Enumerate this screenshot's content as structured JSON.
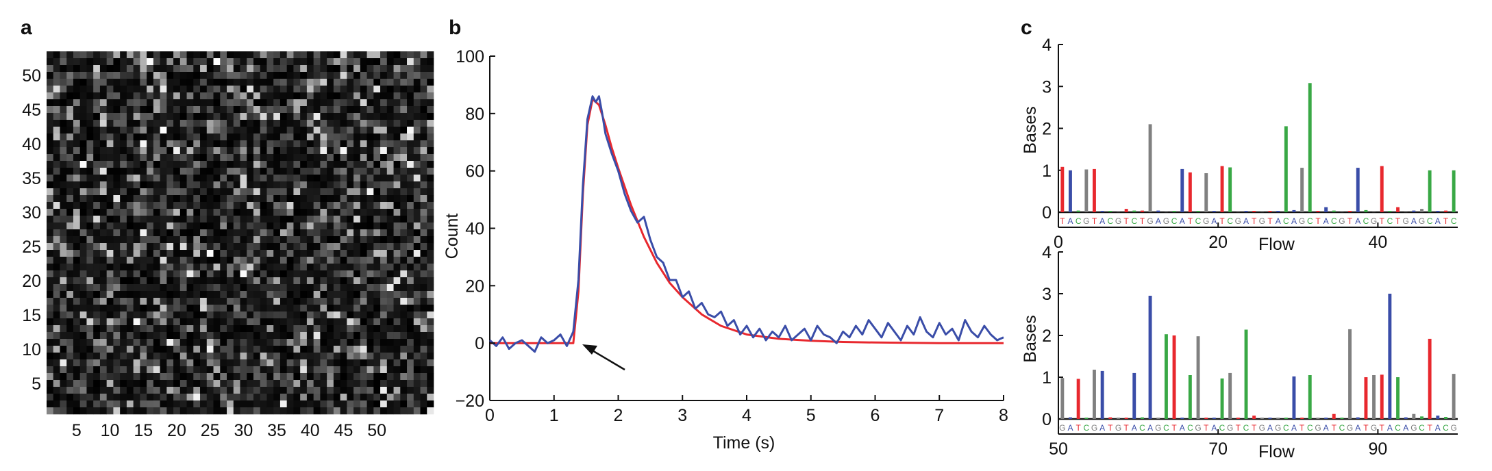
{
  "panels": {
    "a": "a",
    "b": "b",
    "c": "c"
  },
  "chart_data": [
    {
      "panel": "a",
      "type": "heatmap",
      "x_ticks": [
        5,
        10,
        15,
        20,
        25,
        30,
        35,
        40,
        45,
        50
      ],
      "y_ticks": [
        5,
        10,
        15,
        20,
        25,
        30,
        35,
        40,
        45,
        50
      ],
      "grid_size": [
        58,
        53
      ],
      "colormap": "gray",
      "values_note": ""
    },
    {
      "panel": "b",
      "type": "line",
      "xlabel": "Time (s)",
      "ylabel": "Count",
      "xlim": [
        0,
        8
      ],
      "ylim": [
        -20,
        100
      ],
      "x_ticks": [
        0,
        1,
        2,
        3,
        4,
        5,
        6,
        7,
        8
      ],
      "y_ticks": [
        -20,
        0,
        20,
        40,
        60,
        80,
        100
      ],
      "annotation": "arrow pointing to signal onset near t = 1.35 s",
      "series": [
        {
          "color": "#e8282e",
          "x": [
            0,
            0.5,
            1.0,
            1.3,
            1.38,
            1.45,
            1.52,
            1.6,
            1.7,
            1.8,
            1.9,
            2.0,
            2.2,
            2.4,
            2.6,
            2.8,
            3.0,
            3.3,
            3.6,
            4.0,
            4.5,
            5.0,
            5.5,
            6.0,
            7.0,
            8.0
          ],
          "y": [
            0,
            0,
            0,
            0,
            18,
            52,
            76,
            85,
            83,
            76,
            68,
            61,
            48,
            37,
            28,
            21,
            16,
            10,
            6,
            3,
            1.5,
            0.8,
            0.4,
            0.2,
            0,
            0
          ]
        },
        {
          "color": "#3a4da8",
          "x": [
            0,
            0.1,
            0.2,
            0.3,
            0.4,
            0.5,
            0.6,
            0.7,
            0.8,
            0.9,
            1.0,
            1.1,
            1.2,
            1.3,
            1.38,
            1.45,
            1.52,
            1.6,
            1.65,
            1.7,
            1.75,
            1.8,
            1.9,
            2.0,
            2.1,
            2.2,
            2.3,
            2.4,
            2.5,
            2.6,
            2.7,
            2.8,
            2.9,
            3.0,
            3.1,
            3.2,
            3.3,
            3.4,
            3.5,
            3.6,
            3.7,
            3.8,
            3.9,
            4.0,
            4.1,
            4.2,
            4.3,
            4.4,
            4.5,
            4.6,
            4.7,
            4.8,
            4.9,
            5.0,
            5.1,
            5.2,
            5.3,
            5.4,
            5.5,
            5.6,
            5.7,
            5.8,
            5.9,
            6.0,
            6.1,
            6.2,
            6.3,
            6.4,
            6.5,
            6.6,
            6.7,
            6.8,
            6.9,
            7.0,
            7.1,
            7.2,
            7.3,
            7.4,
            7.5,
            7.6,
            7.7,
            7.8,
            7.9,
            8.0
          ],
          "y": [
            1,
            -1,
            2,
            -2,
            0,
            1,
            -1,
            -3,
            2,
            0,
            1,
            3,
            -1,
            4,
            22,
            55,
            78,
            86,
            84,
            86,
            80,
            73,
            66,
            60,
            52,
            46,
            42,
            44,
            36,
            30,
            28,
            22,
            22,
            16,
            18,
            12,
            14,
            10,
            9,
            11,
            6,
            8,
            3,
            6,
            2,
            5,
            1,
            4,
            2,
            6,
            1,
            3,
            5,
            1,
            6,
            3,
            2,
            0,
            4,
            2,
            6,
            3,
            8,
            5,
            2,
            7,
            4,
            1,
            6,
            3,
            9,
            4,
            2,
            7,
            3,
            5,
            1,
            8,
            4,
            2,
            6,
            3,
            1,
            2
          ]
        }
      ]
    },
    {
      "panel": "c-top",
      "type": "bar",
      "ylabel": "Bases",
      "xlabel": "Flow",
      "ylim": [
        0,
        4
      ],
      "xlim": [
        0,
        50
      ],
      "x_ticks": [
        0,
        20,
        40
      ],
      "y_ticks": [
        0,
        1,
        2,
        3,
        4
      ],
      "sequence": "TACGTACGTCTGAGCATCGATCGATGTACAGCTACGTACGTCTGAGCATC",
      "base_colors": {
        "T": "#e8282e",
        "A": "#3a4da8",
        "C": "#39a845",
        "G": "#808080"
      },
      "values": [
        1.08,
        1.0,
        0.04,
        1.02,
        1.03,
        0.03,
        0.02,
        0.03,
        0.08,
        0.04,
        0.04,
        2.1,
        0.04,
        0.03,
        0.02,
        1.03,
        0.95,
        0.03,
        0.93,
        0.03,
        1.1,
        1.07,
        0.03,
        0.02,
        0.02,
        0.03,
        0.03,
        0.02,
        2.05,
        0.05,
        1.06,
        3.08,
        0.03,
        0.12,
        0.04,
        0.03,
        0.03,
        1.06,
        0.05,
        0.03,
        1.1,
        0.02,
        0.12,
        0.03,
        0.04,
        0.08,
        1.0,
        0.02,
        0.04,
        1.0
      ]
    },
    {
      "panel": "c-bottom",
      "type": "bar",
      "ylabel": "Bases",
      "xlabel": "Flow",
      "ylim": [
        0,
        4
      ],
      "xlim": [
        50,
        100
      ],
      "x_ticks": [
        50,
        70,
        90
      ],
      "y_ticks": [
        0,
        1,
        2,
        3,
        4
      ],
      "sequence": "GATCGATGTACAGCTACGTACGTCTGAGCATCGATCGATGTACAGCTACG",
      "base_colors": {
        "T": "#e8282e",
        "A": "#3a4da8",
        "C": "#39a845",
        "G": "#808080"
      },
      "values": [
        0.98,
        0.04,
        0.96,
        0.03,
        1.18,
        1.15,
        0.04,
        0.03,
        0.03,
        1.1,
        0.04,
        2.95,
        0.03,
        2.03,
        2.0,
        0.03,
        1.05,
        1.98,
        0.03,
        0.03,
        0.97,
        1.1,
        0.02,
        2.14,
        0.08,
        0.02,
        0.03,
        0.02,
        0.03,
        1.02,
        0.03,
        1.05,
        0.03,
        0.03,
        0.12,
        0.03,
        2.15,
        0.04,
        1.0,
        1.05,
        1.06,
        3.0,
        1.0,
        0.04,
        0.12,
        0.06,
        1.92,
        0.08,
        0.05,
        1.08
      ]
    }
  ]
}
